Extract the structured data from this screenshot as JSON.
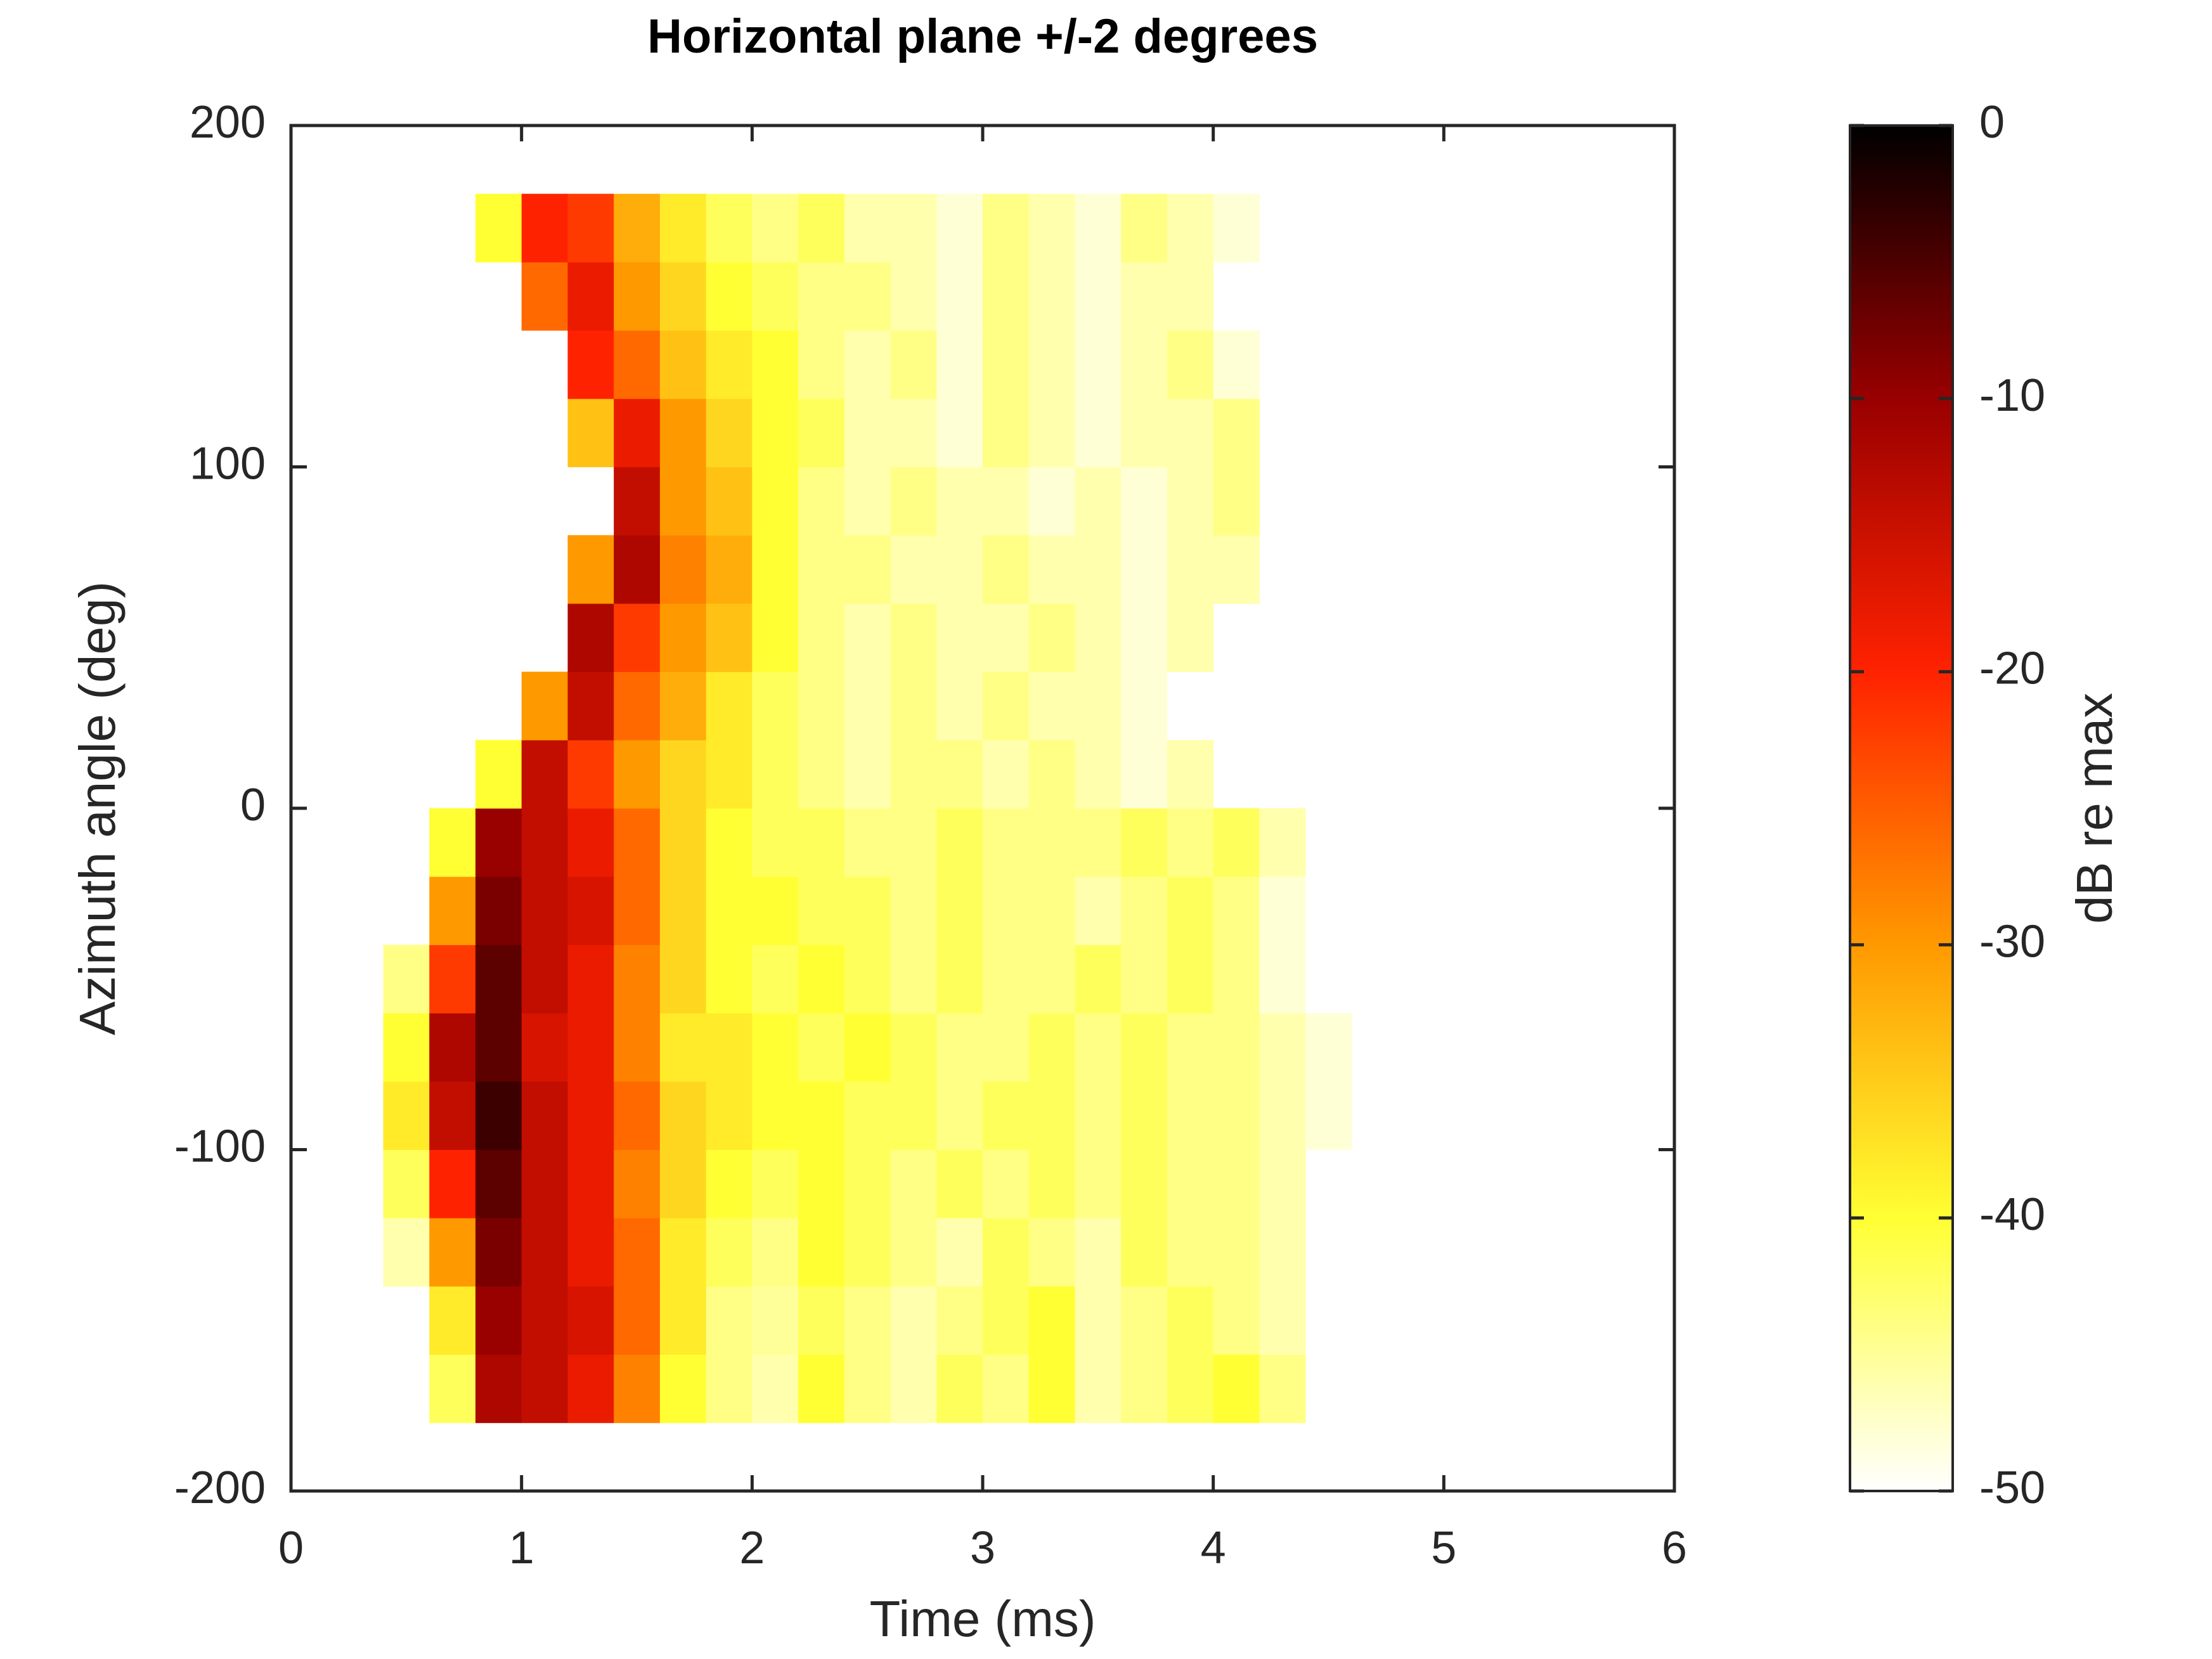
{
  "chart_data": {
    "type": "heatmap",
    "title": "Horizontal plane +/-2 degrees",
    "xlabel": "Time (ms)",
    "ylabel": "Azimuth angle (deg)",
    "colorbar_label": "dB re max",
    "xlim": [
      0,
      6
    ],
    "xticks": [
      0,
      1,
      2,
      3,
      4,
      5,
      6
    ],
    "ylim": [
      -200,
      200
    ],
    "yticks": [
      -200,
      -100,
      0,
      100,
      200
    ],
    "clim": [
      -50,
      0
    ],
    "cticks": [
      -50,
      -40,
      -30,
      -20,
      -10,
      0
    ],
    "colormap": [
      "#ffffff",
      "#ffff33",
      "#ff9900",
      "#ff2200",
      "#990000",
      "#000000"
    ],
    "x": [
      0.5,
      0.7,
      0.9,
      1.1,
      1.3,
      1.5,
      1.7,
      1.9,
      2.1,
      2.3,
      2.5,
      2.7,
      2.9,
      3.1,
      3.3,
      3.5,
      3.7,
      3.9,
      4.1,
      4.3,
      4.5
    ],
    "y": [
      -170,
      -150,
      -130,
      -110,
      -90,
      -70,
      -50,
      -30,
      -10,
      10,
      30,
      50,
      70,
      90,
      110,
      130,
      150,
      170
    ],
    "z": [
      [
        null,
        -42,
        -12,
        -14,
        -18,
        -28,
        -40,
        -44,
        -46,
        -40,
        -44,
        -46,
        -42,
        -44,
        -40,
        -46,
        -44,
        -42,
        -40,
        -44,
        null
      ],
      [
        null,
        -38,
        -10,
        -14,
        -16,
        -26,
        -38,
        -44,
        -45,
        -42,
        -44,
        -46,
        -44,
        -42,
        -40,
        -46,
        -44,
        -42,
        -44,
        -46,
        null
      ],
      [
        -46,
        -30,
        -8,
        -14,
        -18,
        -26,
        -38,
        -42,
        -44,
        -40,
        -42,
        -44,
        -46,
        -42,
        -44,
        -46,
        -42,
        -44,
        -44,
        -46,
        null
      ],
      [
        -42,
        -20,
        -6,
        -14,
        -18,
        -28,
        -36,
        -40,
        -42,
        -40,
        -42,
        -44,
        -42,
        -44,
        -42,
        -44,
        -42,
        -44,
        -44,
        -46,
        null
      ],
      [
        -38,
        -14,
        -4,
        -14,
        -18,
        -26,
        -36,
        -38,
        -40,
        -40,
        -42,
        -42,
        -44,
        -42,
        -42,
        -44,
        -42,
        -44,
        -44,
        -46,
        -48
      ],
      [
        -40,
        -12,
        -6,
        -16,
        -18,
        -28,
        -38,
        -38,
        -40,
        -42,
        -40,
        -42,
        -44,
        -44,
        -42,
        -44,
        -42,
        -44,
        -44,
        -46,
        -48
      ],
      [
        -44,
        -22,
        -6,
        -14,
        -18,
        -28,
        -36,
        -40,
        -42,
        -40,
        -42,
        -44,
        -42,
        -44,
        -44,
        -42,
        -44,
        -42,
        -44,
        -48,
        null
      ],
      [
        null,
        -30,
        -8,
        -14,
        -16,
        -26,
        -36,
        -40,
        -40,
        -42,
        -42,
        -44,
        -42,
        -44,
        -44,
        -46,
        -44,
        -42,
        -44,
        -48,
        null
      ],
      [
        null,
        -40,
        -10,
        -14,
        -18,
        -26,
        -36,
        -40,
        -42,
        -42,
        -44,
        -44,
        -42,
        -44,
        -44,
        -44,
        -42,
        -44,
        -42,
        -46,
        null
      ],
      [
        null,
        null,
        -40,
        -14,
        -22,
        -30,
        -36,
        -38,
        -42,
        -44,
        -46,
        -44,
        -44,
        -46,
        -44,
        -46,
        -48,
        -46,
        null,
        null,
        null
      ],
      [
        null,
        null,
        null,
        -30,
        -14,
        -26,
        -32,
        -38,
        -42,
        -44,
        -46,
        -44,
        -46,
        -44,
        -46,
        -46,
        -48,
        null,
        null,
        null,
        null
      ],
      [
        null,
        null,
        null,
        null,
        -12,
        -22,
        -30,
        -34,
        -40,
        -44,
        -46,
        -44,
        -46,
        -46,
        -44,
        -46,
        -48,
        -46,
        null,
        null,
        null
      ],
      [
        null,
        null,
        null,
        null,
        -30,
        -12,
        -28,
        -32,
        -40,
        -44,
        -44,
        -46,
        -46,
        -44,
        -46,
        -46,
        -48,
        -46,
        -46,
        null,
        null
      ],
      [
        null,
        null,
        null,
        null,
        null,
        -14,
        -30,
        -34,
        -40,
        -44,
        -46,
        -44,
        -46,
        -46,
        -48,
        -46,
        -48,
        -46,
        -44,
        null,
        null
      ],
      [
        null,
        null,
        null,
        null,
        -34,
        -18,
        -30,
        -36,
        -40,
        -42,
        -46,
        -46,
        -48,
        -44,
        -46,
        -48,
        -46,
        -46,
        -44,
        null,
        null
      ],
      [
        null,
        null,
        null,
        null,
        -20,
        -26,
        -34,
        -38,
        -40,
        -44,
        -46,
        -44,
        -48,
        -44,
        -46,
        -48,
        -46,
        -44,
        -48,
        null,
        null
      ],
      [
        null,
        null,
        null,
        -26,
        -18,
        -30,
        -36,
        -40,
        -42,
        -44,
        -44,
        -46,
        -48,
        -44,
        -46,
        -48,
        -46,
        -46,
        null,
        null,
        null
      ],
      [
        null,
        null,
        -40,
        -20,
        -22,
        -32,
        -38,
        -42,
        -44,
        -42,
        -46,
        -46,
        -48,
        -44,
        -46,
        -48,
        -44,
        -46,
        -48,
        null,
        null
      ]
    ]
  }
}
